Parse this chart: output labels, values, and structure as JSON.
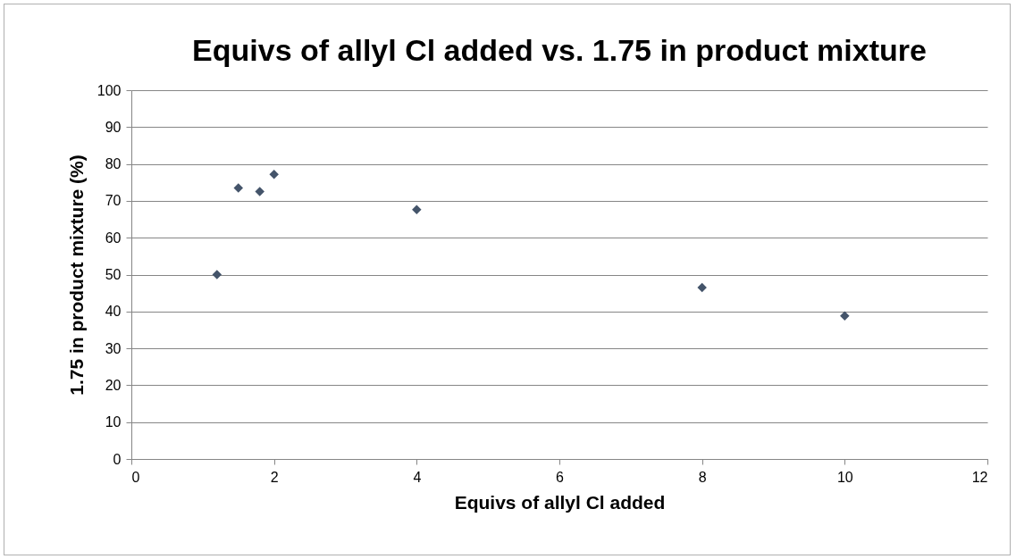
{
  "chart_data": {
    "type": "scatter",
    "title": "Equivs of allyl Cl added vs. 1.75 in product mixture",
    "xlabel": "Equivs of allyl Cl added",
    "ylabel": "1.75 in product mixture (%)",
    "x": [
      1.2,
      1.5,
      1.8,
      2,
      4,
      8,
      10
    ],
    "series": [
      {
        "color": "#44546a",
        "values": [
          50.0,
          73.5,
          72.5,
          77.2,
          67.6,
          46.5,
          38.8
        ]
      }
    ],
    "xlim": [
      0,
      12
    ],
    "xticks": [
      0,
      2,
      4,
      6,
      8,
      10,
      12
    ],
    "ylim": [
      0,
      100
    ],
    "yticks": [
      0,
      10,
      20,
      30,
      40,
      50,
      60,
      70,
      80,
      90,
      100
    ],
    "grid": "y",
    "marker": "diamond"
  }
}
